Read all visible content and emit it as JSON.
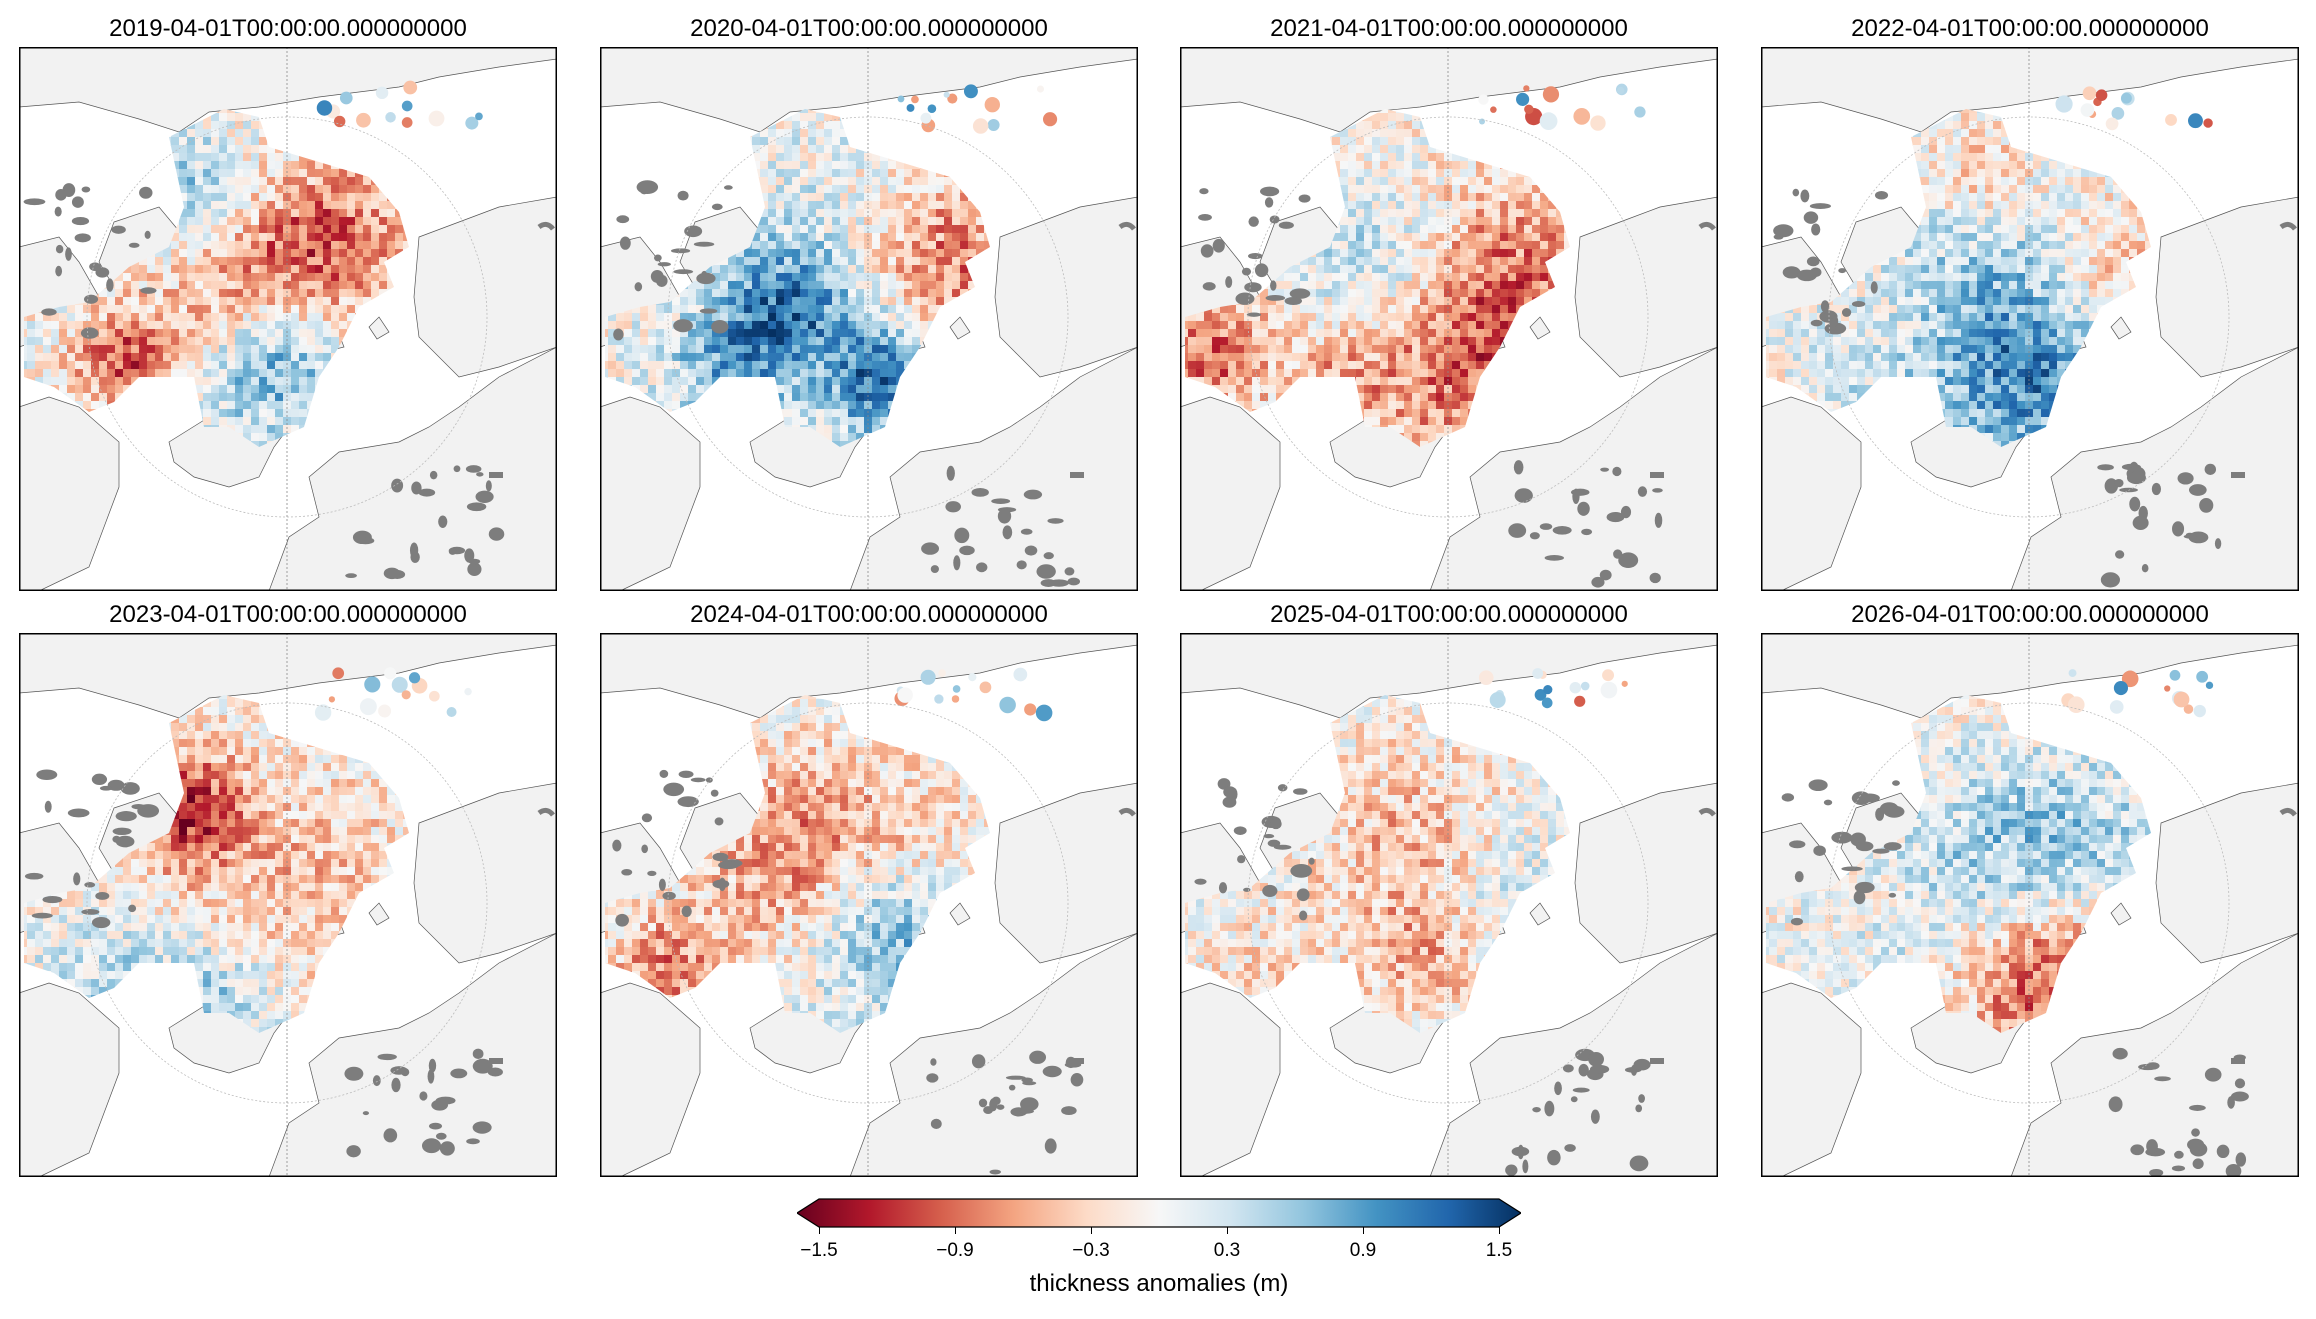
{
  "panels": [
    {
      "title": "2019-04-01T00:00:00.000000000",
      "pattern": "2019"
    },
    {
      "title": "2020-04-01T00:00:00.000000000",
      "pattern": "2020"
    },
    {
      "title": "2021-04-01T00:00:00.000000000",
      "pattern": "2021"
    },
    {
      "title": "2022-04-01T00:00:00.000000000",
      "pattern": "2022"
    },
    {
      "title": "2023-04-01T00:00:00.000000000",
      "pattern": "2023"
    },
    {
      "title": "2024-04-01T00:00:00.000000000",
      "pattern": "2024"
    },
    {
      "title": "2025-04-01T00:00:00.000000000",
      "pattern": "2025"
    },
    {
      "title": "2026-04-01T00:00:00.000000000",
      "pattern": "2026"
    }
  ],
  "colorbar": {
    "label": "thickness anomalies (m)",
    "ticks": [
      "−1.5",
      "−0.9",
      "−0.3",
      "0.3",
      "0.9",
      "1.5"
    ],
    "tick_values": [
      -1.5,
      -0.9,
      -0.3,
      0.3,
      0.9,
      1.5
    ],
    "range": [
      -1.5,
      1.5
    ],
    "colormap": "RdBu",
    "colors": [
      "#67001f",
      "#b2182b",
      "#d6604d",
      "#f4a582",
      "#fddbc7",
      "#f7f7f7",
      "#d1e5f0",
      "#92c5de",
      "#4393c3",
      "#2166ac",
      "#053061"
    ],
    "extend": "both"
  },
  "chart_data": {
    "type": "heatmap",
    "title": "",
    "projection": "north polar stereographic",
    "variable": "thickness anomalies (m)",
    "vmin": -1.5,
    "vmax": 1.5,
    "panels": [
      "2019-04-01T00:00:00.000000000",
      "2020-04-01T00:00:00.000000000",
      "2021-04-01T00:00:00.000000000",
      "2022-04-01T00:00:00.000000000",
      "2023-04-01T00:00:00.000000000",
      "2024-04-01T00:00:00.000000000",
      "2025-04-01T00:00:00.000000000",
      "2026-04-01T00:00:00.000000000"
    ]
  }
}
